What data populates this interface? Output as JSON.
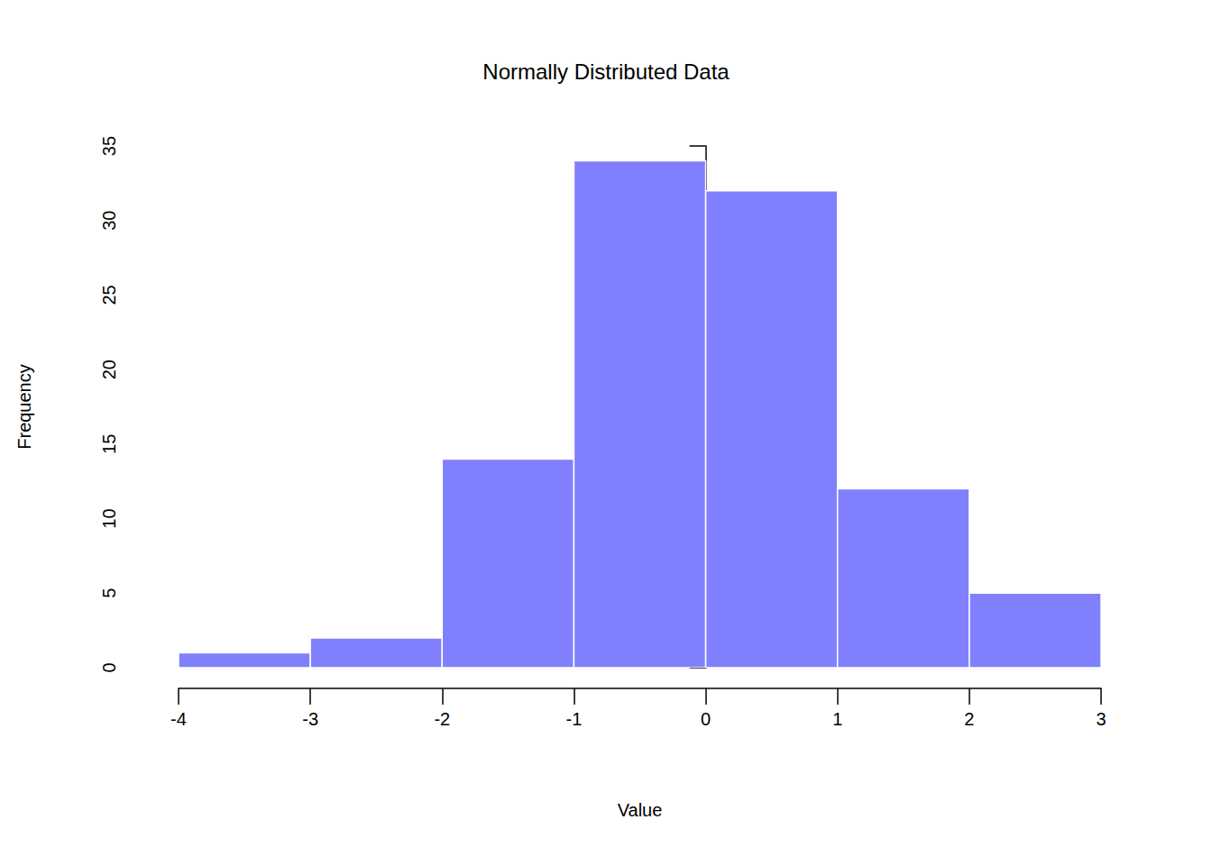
{
  "chart_data": {
    "type": "histogram",
    "title": "Normally Distributed Data",
    "x_label": "Value",
    "y_label": "Frequency",
    "bins": [
      -4,
      -3,
      -2,
      -1,
      0,
      1,
      2,
      3
    ],
    "values": [
      1,
      2,
      14,
      34,
      32,
      12,
      5
    ],
    "color": "#8080ff",
    "xlim": [
      -4,
      3
    ],
    "xticks": [
      -4,
      -3,
      -2,
      -1,
      0,
      1,
      2,
      3
    ],
    "ylim": [
      0,
      35
    ],
    "yticks": [
      0,
      5,
      10,
      15,
      20,
      25,
      30,
      35
    ],
    "grid": false
  }
}
